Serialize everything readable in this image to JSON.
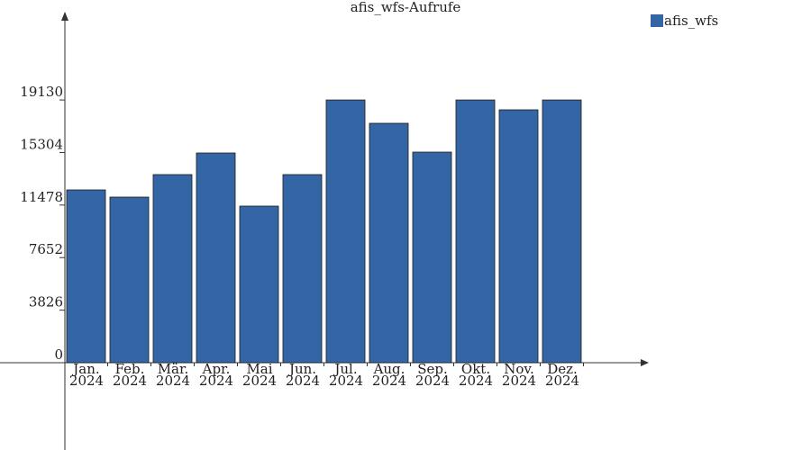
{
  "chart_data": {
    "type": "bar",
    "title": "afis_wfs-Aufrufe",
    "categories": [
      "Jan.\n2024",
      "Feb.\n2024",
      "Mär.\n2024",
      "Apr.\n2024",
      "Mai\n2024",
      "Jun.\n2024",
      "Jul.\n2024",
      "Aug.\n2024",
      "Sep.\n2024",
      "Okt.\n2024",
      "Nov.\n2024",
      "Dez.\n2024"
    ],
    "series": [
      {
        "name": "afis_wfs",
        "color": "#3465a4",
        "values": [
          12582,
          12058,
          13696,
          15269,
          11402,
          13696,
          19130,
          17431,
          15334,
          19130,
          18414,
          19130
        ]
      }
    ],
    "ylim": [
      0,
      25426
    ],
    "yticks": [
      0,
      3826,
      7652,
      11478,
      15304,
      19130
    ],
    "legend": "top-right"
  }
}
